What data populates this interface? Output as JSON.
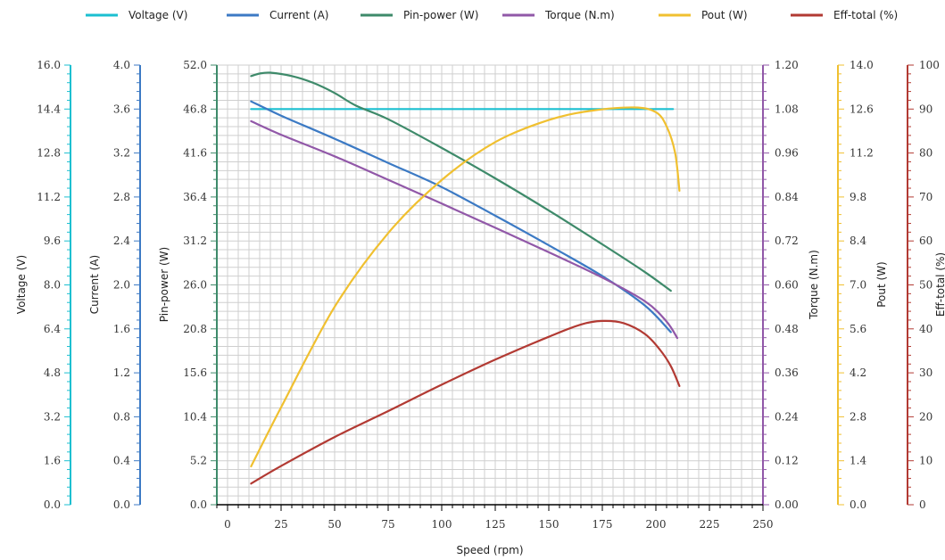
{
  "chart_data": {
    "type": "line",
    "x": {
      "label": "Speed (rpm)",
      "range": [
        -5,
        250
      ],
      "ticks": [
        0,
        25,
        50,
        75,
        100,
        125,
        150,
        175,
        200,
        225,
        250
      ]
    },
    "axes": [
      {
        "id": "voltage",
        "label": "Voltage (V)",
        "range": [
          0,
          16
        ],
        "ticks": [
          "0.0",
          "1.6",
          "3.2",
          "4.8",
          "6.4",
          "8.0",
          "9.6",
          "11.2",
          "12.8",
          "14.4",
          "16.0"
        ],
        "color": "#1bbfd0",
        "side": "left"
      },
      {
        "id": "current",
        "label": "Current (A)",
        "range": [
          0,
          4
        ],
        "ticks": [
          "0.0",
          "0.4",
          "0.8",
          "1.2",
          "1.6",
          "2.0",
          "2.4",
          "2.8",
          "3.2",
          "3.6",
          "4.0"
        ],
        "color": "#3c7ac4",
        "side": "left"
      },
      {
        "id": "pin",
        "label": "Pin-power (W)",
        "range": [
          0,
          52
        ],
        "ticks": [
          "0.0",
          "5.2",
          "10.4",
          "15.6",
          "20.8",
          "26.0",
          "31.2",
          "36.4",
          "41.6",
          "46.8",
          "52.0"
        ],
        "color": "#3e8a6a",
        "side": "left"
      },
      {
        "id": "torque",
        "label": "Torque (N.m)",
        "range": [
          0,
          1.2
        ],
        "ticks": [
          "0.00",
          "0.12",
          "0.24",
          "0.36",
          "0.48",
          "0.60",
          "0.72",
          "0.84",
          "0.96",
          "1.08",
          "1.20"
        ],
        "color": "#9158a8",
        "side": "right"
      },
      {
        "id": "pout",
        "label": "Pout (W)",
        "range": [
          0,
          14
        ],
        "ticks": [
          "0.0",
          "1.4",
          "2.8",
          "4.2",
          "5.6",
          "7.0",
          "8.4",
          "9.8",
          "11.2",
          "12.6",
          "14.0"
        ],
        "color": "#f0c030",
        "side": "right"
      },
      {
        "id": "eff",
        "label": "Eff-total (%)",
        "range": [
          0,
          100
        ],
        "ticks": [
          "0",
          "10",
          "20",
          "30",
          "40",
          "50",
          "60",
          "70",
          "80",
          "90",
          "100"
        ],
        "color": "#b23a33",
        "side": "right"
      }
    ],
    "series": [
      {
        "name": "Voltage (V)",
        "axis": "voltage",
        "color": "#1bbfd0",
        "points": [
          [
            11,
            14.4
          ],
          [
            50,
            14.4
          ],
          [
            100,
            14.4
          ],
          [
            150,
            14.4
          ],
          [
            190,
            14.4
          ],
          [
            208,
            14.4
          ]
        ]
      },
      {
        "name": "Current (A)",
        "axis": "current",
        "color": "#3c7ac4",
        "points": [
          [
            11,
            3.67
          ],
          [
            25,
            3.54
          ],
          [
            50,
            3.33
          ],
          [
            75,
            3.11
          ],
          [
            100,
            2.89
          ],
          [
            125,
            2.63
          ],
          [
            150,
            2.36
          ],
          [
            175,
            2.08
          ],
          [
            195,
            1.81
          ],
          [
            207,
            1.57
          ]
        ]
      },
      {
        "name": "Pin-power (W)",
        "axis": "pin",
        "color": "#3e8a6a",
        "points": [
          [
            11,
            50.7
          ],
          [
            15,
            51.0
          ],
          [
            20,
            51.1
          ],
          [
            30,
            50.7
          ],
          [
            40,
            49.9
          ],
          [
            50,
            48.7
          ],
          [
            60,
            47.2
          ],
          [
            75,
            45.6
          ],
          [
            100,
            42.2
          ],
          [
            125,
            38.6
          ],
          [
            150,
            34.8
          ],
          [
            175,
            30.8
          ],
          [
            195,
            27.5
          ],
          [
            207,
            25.3
          ]
        ]
      },
      {
        "name": "Torque (N.m)",
        "axis": "torque",
        "color": "#9158a8",
        "points": [
          [
            11,
            1.047
          ],
          [
            25,
            1.01
          ],
          [
            50,
            0.951
          ],
          [
            75,
            0.887
          ],
          [
            100,
            0.822
          ],
          [
            125,
            0.756
          ],
          [
            150,
            0.689
          ],
          [
            175,
            0.62
          ],
          [
            195,
            0.555
          ],
          [
            205,
            0.5
          ],
          [
            210,
            0.455
          ]
        ]
      },
      {
        "name": "Pout (W)",
        "axis": "pout",
        "color": "#f0c030",
        "points": [
          [
            11,
            1.22
          ],
          [
            25,
            3.1
          ],
          [
            50,
            6.3
          ],
          [
            75,
            8.65
          ],
          [
            100,
            10.34
          ],
          [
            125,
            11.55
          ],
          [
            150,
            12.25
          ],
          [
            170,
            12.55
          ],
          [
            190,
            12.65
          ],
          [
            200,
            12.5
          ],
          [
            205,
            12.05
          ],
          [
            209,
            11.2
          ],
          [
            211,
            10.0
          ]
        ]
      },
      {
        "name": "Eff-total (%)",
        "axis": "eff",
        "color": "#b23a33",
        "points": [
          [
            11,
            4.8
          ],
          [
            25,
            8.8
          ],
          [
            50,
            15.4
          ],
          [
            75,
            21.3
          ],
          [
            100,
            27.3
          ],
          [
            125,
            33.0
          ],
          [
            150,
            38.2
          ],
          [
            165,
            41.0
          ],
          [
            175,
            41.8
          ],
          [
            185,
            41.3
          ],
          [
            195,
            38.8
          ],
          [
            202,
            35.2
          ],
          [
            207,
            31.5
          ],
          [
            211,
            27.0
          ]
        ]
      }
    ],
    "legend": "top",
    "grid": true
  }
}
